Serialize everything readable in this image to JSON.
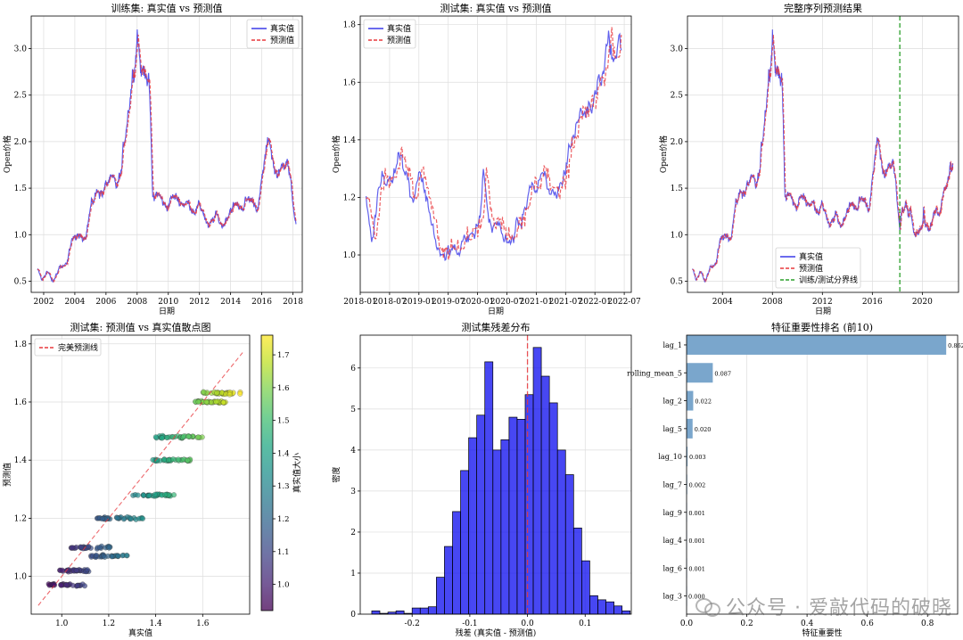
{
  "colors": {
    "true": "#3a3ae8",
    "pred": "#e8383d",
    "split": "#2ca02c",
    "hist": "#0000ee",
    "bar": "#7aa6cc",
    "grid": "#dddddd"
  },
  "watermark": {
    "text": "公众号 · 爱敲代码的破晓",
    "icon": "wechat-icon"
  },
  "chart_data": [
    {
      "type": "line",
      "id": "train",
      "title": "训练集: 真实值 vs 预测值",
      "xlabel": "日期",
      "ylabel": "Open价格",
      "xlim": [
        2001.2,
        2018.6
      ],
      "ylim": [
        0.38,
        3.35
      ],
      "xticks": [
        2002,
        2004,
        2006,
        2008,
        2010,
        2012,
        2014,
        2016,
        2018
      ],
      "xticklabels": [
        "2002",
        "2004",
        "2006",
        "2008",
        "2010",
        "2012",
        "2014",
        "2016",
        "2018"
      ],
      "yticks": [
        0.5,
        1.0,
        1.5,
        2.0,
        2.5,
        3.0
      ],
      "yticklabels": [
        "0.5",
        "1.0",
        "1.5",
        "2.0",
        "2.5",
        "3.0"
      ],
      "legend": {
        "position": "top-right",
        "entries": [
          "真实值",
          "预测值"
        ]
      },
      "anchors": [
        [
          2001.6,
          0.62
        ],
        [
          2001.9,
          0.5
        ],
        [
          2002.2,
          0.62
        ],
        [
          2002.6,
          0.48
        ],
        [
          2003.0,
          0.66
        ],
        [
          2003.5,
          0.66
        ],
        [
          2003.8,
          0.97
        ],
        [
          2004.2,
          0.95
        ],
        [
          2004.7,
          1.02
        ],
        [
          2005.0,
          1.28
        ],
        [
          2005.5,
          1.5
        ],
        [
          2005.8,
          1.45
        ],
        [
          2006.2,
          1.58
        ],
        [
          2006.7,
          1.5
        ],
        [
          2007.0,
          1.68
        ],
        [
          2007.3,
          2.2
        ],
        [
          2007.6,
          2.6
        ],
        [
          2007.9,
          3.0
        ],
        [
          2008.0,
          3.25
        ],
        [
          2008.3,
          2.7
        ],
        [
          2008.6,
          2.85
        ],
        [
          2008.8,
          2.5
        ],
        [
          2009.0,
          1.35
        ],
        [
          2009.3,
          1.45
        ],
        [
          2009.8,
          1.3
        ],
        [
          2010.3,
          1.4
        ],
        [
          2011.0,
          1.35
        ],
        [
          2011.6,
          1.3
        ],
        [
          2012.2,
          1.28
        ],
        [
          2012.6,
          1.05
        ],
        [
          2013.0,
          1.2
        ],
        [
          2013.5,
          1.1
        ],
        [
          2014.0,
          1.3
        ],
        [
          2014.6,
          1.3
        ],
        [
          2015.2,
          1.38
        ],
        [
          2015.8,
          1.32
        ],
        [
          2016.2,
          1.8
        ],
        [
          2016.5,
          2.05
        ],
        [
          2016.8,
          1.7
        ],
        [
          2017.2,
          1.65
        ],
        [
          2017.6,
          1.9
        ],
        [
          2017.9,
          1.45
        ],
        [
          2018.2,
          1.12
        ]
      ],
      "series": [
        {
          "name": "真实值",
          "style": "solid"
        },
        {
          "name": "预测值",
          "style": "dashed"
        }
      ]
    },
    {
      "type": "line",
      "id": "test",
      "title": "测试集: 真实值 vs 预测值",
      "xlabel": "日期",
      "ylabel": "Open价格",
      "xlim": [
        2018.0,
        2022.62
      ],
      "ylim": [
        0.87,
        1.83
      ],
      "xticks": [
        2018.0,
        2018.5,
        2019.0,
        2019.5,
        2020.0,
        2020.5,
        2021.0,
        2021.5,
        2022.0,
        2022.5
      ],
      "xticklabels": [
        "2018-01",
        "2018-07",
        "2019-01",
        "2019-07",
        "2020-01",
        "2020-07",
        "2021-01",
        "2021-07",
        "2022-01",
        "2022-07"
      ],
      "yticks": [
        1.0,
        1.2,
        1.4,
        1.6,
        1.8
      ],
      "yticklabels": [
        "1.0",
        "1.2",
        "1.4",
        "1.6",
        "1.8"
      ],
      "legend": {
        "position": "top-left",
        "entries": [
          "真实值",
          "预测值"
        ]
      },
      "anchors": [
        [
          2018.1,
          1.2
        ],
        [
          2018.2,
          1.05
        ],
        [
          2018.35,
          1.28
        ],
        [
          2018.5,
          1.28
        ],
        [
          2018.65,
          1.38
        ],
        [
          2018.75,
          1.3
        ],
        [
          2018.9,
          1.2
        ],
        [
          2019.0,
          1.32
        ],
        [
          2019.15,
          1.18
        ],
        [
          2019.3,
          1.05
        ],
        [
          2019.45,
          0.97
        ],
        [
          2019.55,
          1.02
        ],
        [
          2019.7,
          1.0
        ],
        [
          2019.85,
          1.07
        ],
        [
          2019.95,
          1.05
        ],
        [
          2020.05,
          1.16
        ],
        [
          2020.1,
          1.3
        ],
        [
          2020.2,
          1.1
        ],
        [
          2020.3,
          1.13
        ],
        [
          2020.45,
          1.04
        ],
        [
          2020.6,
          1.06
        ],
        [
          2020.75,
          1.12
        ],
        [
          2020.9,
          1.27
        ],
        [
          2021.0,
          1.22
        ],
        [
          2021.1,
          1.25
        ],
        [
          2021.25,
          1.18
        ],
        [
          2021.35,
          1.22
        ],
        [
          2021.45,
          1.25
        ],
        [
          2021.55,
          1.38
        ],
        [
          2021.7,
          1.46
        ],
        [
          2021.8,
          1.5
        ],
        [
          2021.95,
          1.52
        ],
        [
          2022.05,
          1.6
        ],
        [
          2022.15,
          1.68
        ],
        [
          2022.25,
          1.75
        ],
        [
          2022.35,
          1.68
        ],
        [
          2022.45,
          1.72
        ]
      ],
      "series": [
        {
          "name": "真实值",
          "style": "solid"
        },
        {
          "name": "预测值",
          "style": "dashed"
        }
      ]
    },
    {
      "type": "line",
      "id": "full",
      "title": "完整序列预测结果",
      "xlabel": "日期",
      "ylabel": "Open价格",
      "xlim": [
        2001.2,
        2022.9
      ],
      "ylim": [
        0.38,
        3.35
      ],
      "xticks": [
        2004,
        2008,
        2012,
        2016,
        2020
      ],
      "xticklabels": [
        "2004",
        "2008",
        "2012",
        "2016",
        "2020"
      ],
      "yticks": [
        0.5,
        1.0,
        1.5,
        2.0,
        2.5,
        3.0
      ],
      "yticklabels": [
        "0.5",
        "1.0",
        "1.5",
        "2.0",
        "2.5",
        "3.0"
      ],
      "split_x": 2018.2,
      "legend": {
        "position": "lower-center",
        "entries": [
          "真实值",
          "预测值",
          "训练/测试分界线"
        ]
      },
      "series": [
        {
          "name": "真实值",
          "style": "solid"
        },
        {
          "name": "预测值",
          "style": "dashed"
        },
        {
          "name": "训练/测试分界线",
          "style": "dashed"
        }
      ]
    },
    {
      "type": "scatter",
      "id": "scatter",
      "title": "测试集: 预测值 vs 真实值散点图",
      "xlabel": "真实值",
      "ylabel": "预测值",
      "xlim": [
        0.87,
        1.8
      ],
      "ylim": [
        0.87,
        1.83
      ],
      "xticks": [
        1.0,
        1.2,
        1.4,
        1.6
      ],
      "xticklabels": [
        "1.0",
        "1.2",
        "1.4",
        "1.6"
      ],
      "yticks": [
        1.0,
        1.2,
        1.4,
        1.6,
        1.8
      ],
      "yticklabels": [
        "1.0",
        "1.2",
        "1.4",
        "1.6",
        "1.8"
      ],
      "legend": {
        "position": "top-left",
        "entries": [
          "完美预测线"
        ]
      },
      "colorbar": {
        "label": "真实值大小",
        "range": [
          0.92,
          1.76
        ],
        "ticks": [
          1.0,
          1.1,
          1.2,
          1.3,
          1.4,
          1.5,
          1.6,
          1.7
        ],
        "ticklabels": [
          "1.0",
          "1.1",
          "1.2",
          "1.3",
          "1.4",
          "1.5",
          "1.6",
          "1.7"
        ]
      },
      "clusters": [
        [
          1.02,
          0.97,
          0.94,
          1.1
        ],
        [
          1.03,
          1.02,
          0.99,
          1.12
        ],
        [
          1.19,
          1.07,
          1.12,
          1.28
        ],
        [
          1.27,
          1.1,
          1.04,
          1.22
        ],
        [
          1.33,
          1.2,
          1.15,
          1.35
        ],
        [
          1.39,
          1.28,
          1.3,
          1.48
        ],
        [
          1.47,
          1.4,
          1.38,
          1.55
        ],
        [
          1.53,
          1.48,
          1.4,
          1.6
        ],
        [
          1.57,
          1.6,
          1.55,
          1.7
        ],
        [
          1.63,
          1.63,
          1.6,
          1.76
        ]
      ]
    },
    {
      "type": "bar",
      "subtype": "histogram",
      "id": "hist",
      "title": "测试集残差分布",
      "xlabel": "残差 (真实值 - 预测值)",
      "ylabel": "密度",
      "xlim": [
        -0.29,
        0.18
      ],
      "ylim": [
        0,
        6.8
      ],
      "xticks": [
        -0.2,
        -0.1,
        0.0,
        0.1
      ],
      "xticklabels": [
        "-0.2",
        "-0.1",
        "0.0",
        "0.1"
      ],
      "yticks": [
        0,
        1,
        2,
        3,
        4,
        5,
        6
      ],
      "yticklabels": [
        "0",
        "1",
        "2",
        "3",
        "4",
        "5",
        "6"
      ],
      "bin_start": -0.27,
      "bin_width": 0.014,
      "vline_x": 0.0,
      "values": [
        0.08,
        0.02,
        0.05,
        0.08,
        0.02,
        0.15,
        0.15,
        0.18,
        0.9,
        1.65,
        2.5,
        3.5,
        4.3,
        4.85,
        6.15,
        4.0,
        4.25,
        4.8,
        4.75,
        5.35,
        6.5,
        5.8,
        5.15,
        4.0,
        3.4,
        2.1,
        1.3,
        0.45,
        0.35,
        0.3,
        0.2,
        0.08
      ]
    },
    {
      "type": "bar",
      "orientation": "horizontal",
      "id": "importance",
      "title": "特征重要性排名 (前10)",
      "xlabel": "特征重要性",
      "xlim": [
        0,
        0.9
      ],
      "xticks": [
        0.0,
        0.2,
        0.4,
        0.6,
        0.8
      ],
      "xticklabels": [
        "0.0",
        "0.2",
        "0.4",
        "0.6",
        "0.8"
      ],
      "categories": [
        "lag_1",
        "rolling_mean_5",
        "lag_2",
        "lag_5",
        "lag_10",
        "lag_7",
        "lag_9",
        "lag_4",
        "lag_6",
        "lag_3"
      ],
      "values": [
        0.862,
        0.087,
        0.022,
        0.02,
        0.003,
        0.002,
        0.001,
        0.001,
        0.001,
        0.0
      ],
      "value_labels": [
        "0.862",
        "0.087",
        "0.022",
        "0.020",
        "0.003",
        "0.002",
        "0.001",
        "0.001",
        "0.001",
        "0.000"
      ]
    }
  ]
}
